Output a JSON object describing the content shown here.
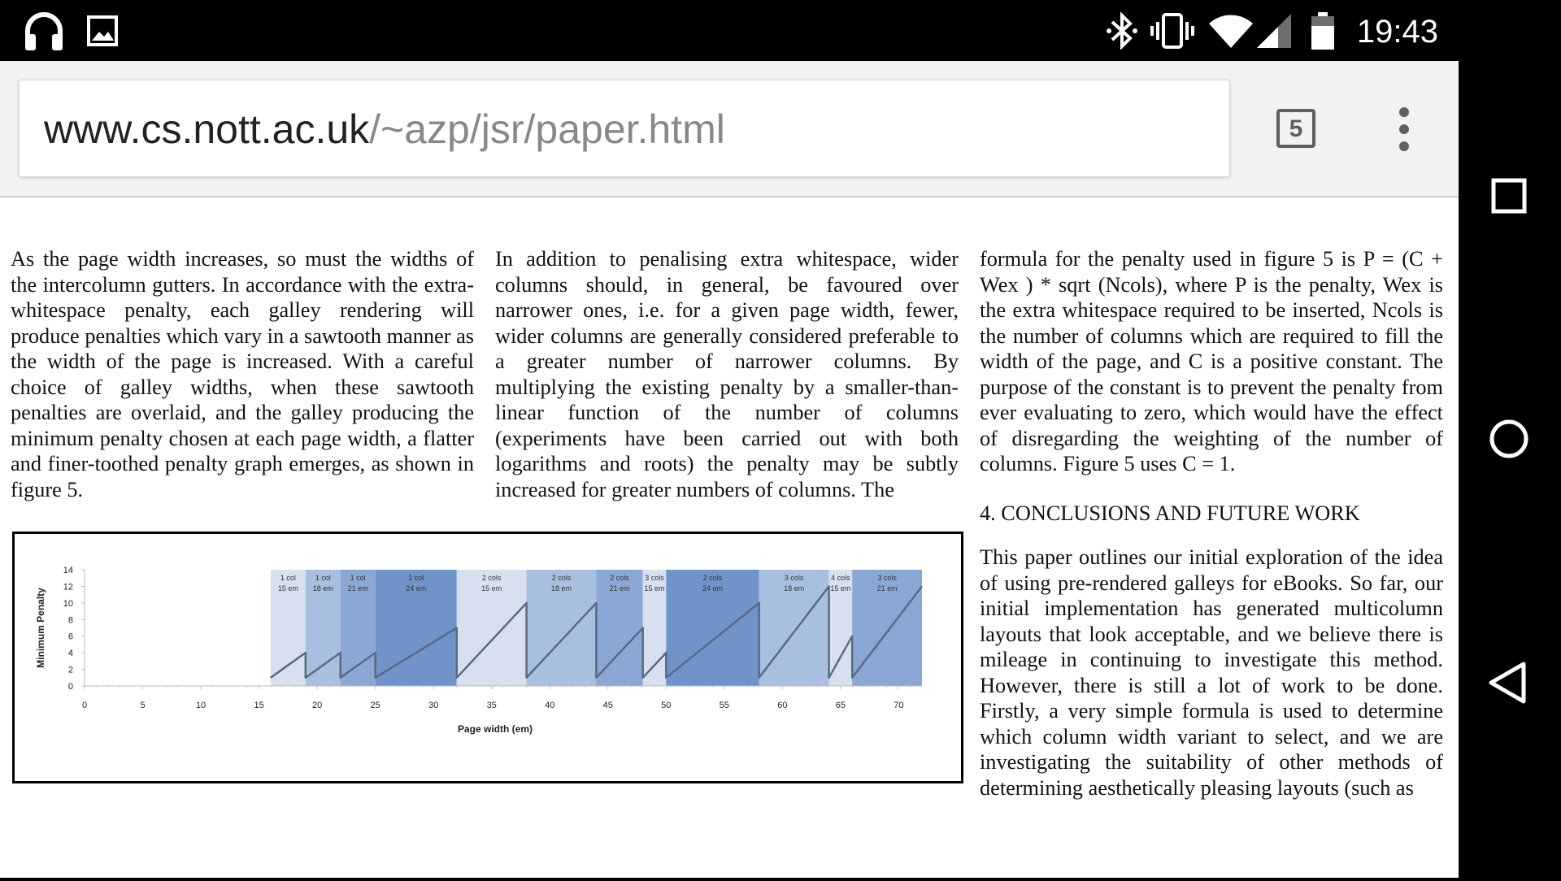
{
  "status_bar": {
    "time": "19:43",
    "left_icons": [
      "headphones-icon",
      "image-icon"
    ],
    "right_icons": [
      "bluetooth-icon",
      "vibrate-icon",
      "wifi-icon",
      "cell-signal-icon",
      "battery-icon"
    ]
  },
  "toolbar": {
    "url_host": "www.cs.nott.ac.uk",
    "url_path": "/~azp/jsr/paper.html",
    "tab_count": "5"
  },
  "article": {
    "col1_p1": "As the page width increases, so must the widths of the intercolumn gutters. In accordance with the extra-whitespace penalty, each galley rendering will produce penalties which vary in a sawtooth manner as the width of the page is increased. With a careful choice of galley widths, when these sawtooth penalties are overlaid, and the galley producing the minimum penalty chosen at each page width, a flatter and finer-toothed penalty graph emerges, as shown in figure 5.",
    "col2_p1": "In addition to penalising extra whitespace, wider columns should, in general, be favoured over narrower ones, i.e. for a given page width, fewer, wider columns are generally considered preferable to a greater number of narrower columns. By multiplying the existing penalty by a smaller-than-linear function of the number of columns (experiments have been carried out with both logarithms and roots) the penalty may be subtly increased for greater numbers of columns. The",
    "col3_p1": "formula for the penalty used in figure 5 is P = (C + Wex ) * sqrt (Ncols), where P is the penalty, Wex is the extra whitespace required to be inserted, Ncols is the number of columns which are required to fill the width of the page, and C is a positive constant. The purpose of the constant is to prevent the penalty from ever evaluating to zero, which would have the effect of disregarding the weighting of the number of columns. Figure 5 uses C = 1.",
    "heading_4": "4. CONCLUSIONS AND FUTURE WORK",
    "col3_p2": "This paper outlines our initial exploration of the idea of using pre-rendered galleys for eBooks. So far, our initial implementation has generated multicolumn layouts that look acceptable, and we believe there is mileage in continuing to investigate this method. However, there is still a lot of work to be done. Firstly, a very simple formula is used to determine which column width variant to select, and we are investigating the suitability of other methods of determining aesthetically pleasing layouts (such as"
  },
  "chart_data": {
    "type": "line",
    "title": "",
    "xlabel": "Page width (em)",
    "ylabel": "Minimum Penalty",
    "xlim": [
      0,
      72
    ],
    "ylim": [
      0,
      14
    ],
    "xticks": [
      0,
      5,
      10,
      15,
      20,
      25,
      30,
      35,
      40,
      45,
      50,
      55,
      60,
      65,
      70
    ],
    "yticks": [
      0,
      2,
      4,
      6,
      8,
      10,
      12,
      14
    ],
    "grid": false,
    "series": [
      {
        "points": [
          [
            16,
            1
          ],
          [
            19,
            4
          ],
          [
            19,
            1
          ],
          [
            22,
            4
          ],
          [
            22,
            1
          ],
          [
            25,
            4
          ],
          [
            25,
            1
          ],
          [
            32,
            7
          ],
          [
            32,
            1
          ],
          [
            38,
            10
          ],
          [
            38,
            1
          ],
          [
            44,
            10
          ],
          [
            44,
            1
          ],
          [
            48,
            7
          ],
          [
            48,
            1
          ],
          [
            50,
            4
          ],
          [
            50,
            1
          ],
          [
            58,
            10
          ],
          [
            58,
            1
          ],
          [
            64,
            12
          ],
          [
            64,
            1
          ],
          [
            66,
            6
          ],
          [
            66,
            1
          ],
          [
            72,
            12
          ]
        ]
      }
    ],
    "bands": [
      {
        "from": 16,
        "to": 19,
        "label1": "1 col",
        "label2": "15 em",
        "color": "#d6e0ee"
      },
      {
        "from": 19,
        "to": 22,
        "label1": "1 col",
        "label2": "18 em",
        "color": "#a9bfdf"
      },
      {
        "from": 22,
        "to": 25,
        "label1": "1 col",
        "label2": "21 em",
        "color": "#8ba8d4"
      },
      {
        "from": 25,
        "to": 32,
        "label1": "1 col",
        "label2": "24 em",
        "color": "#6f94c9"
      },
      {
        "from": 32,
        "to": 38,
        "label1": "2 cols",
        "label2": "15 em",
        "color": "#d6e0ee"
      },
      {
        "from": 38,
        "to": 44,
        "label1": "2 cols",
        "label2": "18 em",
        "color": "#a9bfdf"
      },
      {
        "from": 44,
        "to": 48,
        "label1": "2 cols",
        "label2": "21 em",
        "color": "#8ba8d4"
      },
      {
        "from": 48,
        "to": 50,
        "label1": "3 cols",
        "label2": "15 em",
        "color": "#d6e0ee"
      },
      {
        "from": 50,
        "to": 58,
        "label1": "2 cols",
        "label2": "24 em",
        "color": "#6f94c9"
      },
      {
        "from": 58,
        "to": 64,
        "label1": "3 cols",
        "label2": "18 em",
        "color": "#a9bfdf"
      },
      {
        "from": 64,
        "to": 66,
        "label1": "4 cols",
        "label2": "15 em",
        "color": "#d6e0ee"
      },
      {
        "from": 66,
        "to": 72,
        "label1": "3 cols",
        "label2": "21 em",
        "color": "#8ba8d4"
      }
    ],
    "line_color": "#5a6a82"
  },
  "nav_bar": {
    "buttons": [
      "recents-button",
      "home-button",
      "back-button"
    ]
  }
}
